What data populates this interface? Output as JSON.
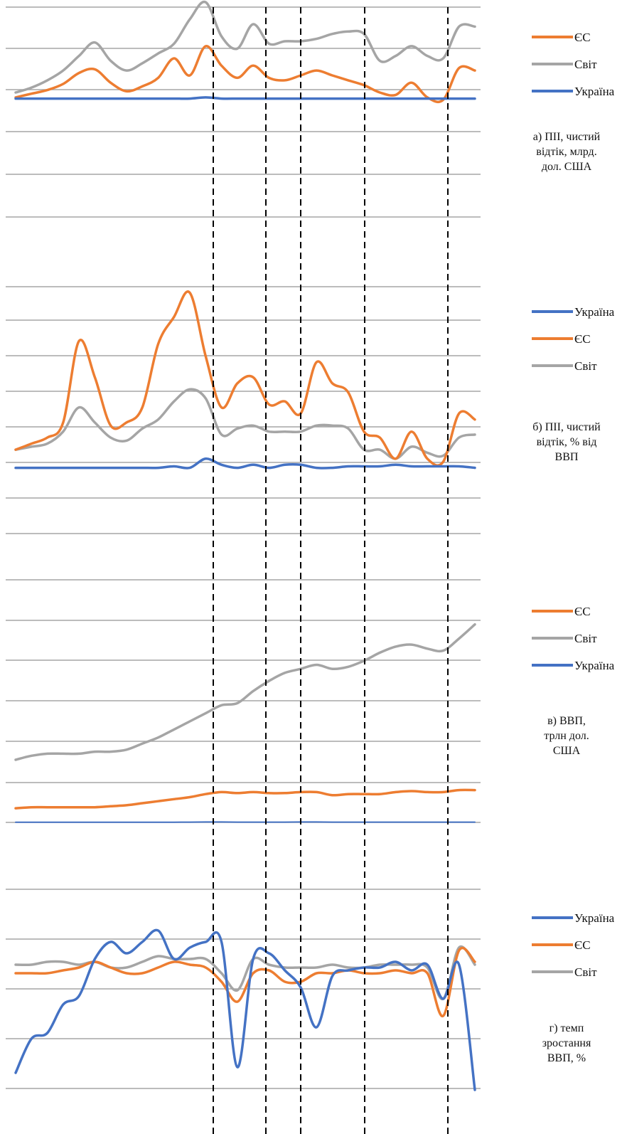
{
  "colors": {
    "ЄС": "#ED7D31",
    "Світ": "#A5A5A5",
    "Україна": "#4472C4"
  },
  "chart_data": [
    {
      "type": "line",
      "caption": "а) ПІІ, чистий відтік, млрд. дол. США",
      "caption_lines": [
        "а) ПІІ, чистий",
        "відтік, млрд.",
        "дол. США"
      ],
      "legend": [
        "ЄС",
        "Світ",
        "Україна"
      ],
      "grid": true,
      "ylim": [
        0,
        7
      ],
      "x": [
        0,
        1,
        2,
        3,
        4,
        5,
        6,
        7,
        8,
        9,
        10,
        11,
        12,
        13,
        14,
        15,
        16,
        17,
        18,
        19,
        20,
        21,
        22,
        23,
        24,
        25,
        26,
        27,
        28,
        29
      ],
      "series": [
        {
          "name": "ЄС",
          "values": [
            3.3,
            3.45,
            3.6,
            3.85,
            4.3,
            4.45,
            3.9,
            3.55,
            3.75,
            4.1,
            4.9,
            4.2,
            5.4,
            4.6,
            4.1,
            4.6,
            4.1,
            4.0,
            4.2,
            4.4,
            4.2,
            4.0,
            3.8,
            3.5,
            3.4,
            3.9,
            3.3,
            3.2,
            4.5,
            4.4
          ]
        },
        {
          "name": "Світ",
          "values": [
            3.5,
            3.7,
            4.0,
            4.4,
            5.0,
            5.55,
            4.8,
            4.4,
            4.7,
            5.1,
            5.5,
            6.5,
            7.2,
            5.8,
            5.3,
            6.3,
            5.5,
            5.6,
            5.6,
            5.7,
            5.9,
            6.0,
            5.9,
            4.8,
            5.0,
            5.4,
            5.0,
            4.9,
            6.2,
            6.2
          ]
        },
        {
          "name": "Україна",
          "values": [
            3.25,
            3.25,
            3.25,
            3.25,
            3.25,
            3.25,
            3.25,
            3.25,
            3.25,
            3.25,
            3.25,
            3.25,
            3.3,
            3.25,
            3.25,
            3.25,
            3.25,
            3.25,
            3.25,
            3.25,
            3.25,
            3.25,
            3.25,
            3.25,
            3.25,
            3.25,
            3.25,
            3.25,
            3.25,
            3.25
          ]
        }
      ]
    },
    {
      "type": "line",
      "caption": "б) ПІІ, чистий відтік, % від ВВП",
      "caption_lines": [
        "б) ПІІ, чистий",
        "відтік, % від",
        "ВВП"
      ],
      "legend": [
        "Україна",
        "ЄС",
        "Світ"
      ],
      "grid": true,
      "ylim": [
        -1,
        6
      ],
      "x": [
        0,
        1,
        2,
        3,
        4,
        5,
        6,
        7,
        8,
        9,
        10,
        11,
        12,
        13,
        14,
        15,
        16,
        17,
        18,
        19,
        20,
        21,
        22,
        23,
        24,
        25,
        26,
        27,
        28,
        29
      ],
      "series": [
        {
          "name": "Україна",
          "values": [
            0,
            0,
            0,
            0,
            0,
            0,
            0,
            0,
            0,
            0,
            0.05,
            0,
            0.3,
            0.1,
            0,
            0.1,
            0,
            0.1,
            0.1,
            0,
            0,
            0.05,
            0.05,
            0.05,
            0.1,
            0.05,
            0.05,
            0.05,
            0.05,
            0
          ]
        },
        {
          "name": "ЄС",
          "values": [
            0.6,
            0.8,
            1.0,
            1.5,
            4.2,
            3.0,
            1.4,
            1.5,
            2.0,
            4.1,
            5.0,
            5.8,
            3.7,
            2.0,
            2.8,
            3.0,
            2.1,
            2.2,
            1.8,
            3.5,
            2.8,
            2.5,
            1.2,
            1.0,
            0.3,
            1.2,
            0.3,
            0.2,
            1.8,
            1.6
          ]
        },
        {
          "name": "Світ",
          "values": [
            0.6,
            0.7,
            0.8,
            1.2,
            2.0,
            1.5,
            1.0,
            0.9,
            1.3,
            1.6,
            2.2,
            2.6,
            2.3,
            1.1,
            1.3,
            1.4,
            1.2,
            1.2,
            1.2,
            1.4,
            1.4,
            1.3,
            0.6,
            0.6,
            0.3,
            0.7,
            0.5,
            0.4,
            1.0,
            1.1
          ]
        }
      ]
    },
    {
      "type": "line",
      "caption": "в) ВВП, трлн дол. США",
      "caption_lines": [
        "в) ВВП,",
        "трлн дол.",
        "США"
      ],
      "legend": [
        "ЄС",
        "Світ",
        "Україна"
      ],
      "grid": true,
      "ylim": [
        0,
        100
      ],
      "x": [
        0,
        1,
        2,
        3,
        4,
        5,
        6,
        7,
        8,
        9,
        10,
        11,
        12,
        13,
        14,
        15,
        16,
        17,
        18,
        19,
        20,
        21,
        22,
        23,
        24,
        25,
        26,
        27,
        28,
        29
      ],
      "series": [
        {
          "name": "ЄС",
          "values": [
            7,
            7.5,
            7.5,
            7.5,
            7.5,
            7.5,
            8,
            8.5,
            9.5,
            10.5,
            11.5,
            12.5,
            14,
            15,
            14.5,
            15,
            14.5,
            14.5,
            15,
            15,
            13.5,
            14,
            14,
            14,
            15,
            15.5,
            15,
            15,
            16,
            16
          ]
        },
        {
          "name": "Світ",
          "values": [
            31,
            33,
            34,
            34,
            34,
            35,
            35,
            36,
            39,
            42,
            46,
            50,
            54,
            58,
            59,
            65,
            70,
            74,
            76,
            78,
            76,
            77,
            80,
            84,
            87,
            88,
            86,
            85,
            91,
            98
          ]
        },
        {
          "name": "Україна",
          "values": [
            0.1,
            0.1,
            0.1,
            0.1,
            0.1,
            0.1,
            0.1,
            0.1,
            0.1,
            0.1,
            0.1,
            0.15,
            0.2,
            0.2,
            0.15,
            0.15,
            0.15,
            0.15,
            0.2,
            0.2,
            0.15,
            0.15,
            0.15,
            0.15,
            0.15,
            0.15,
            0.15,
            0.15,
            0.15,
            0.15
          ]
        }
      ]
    },
    {
      "type": "line",
      "caption": "г) темп зростання ВВП, %",
      "caption_lines": [
        "г) темп",
        "зростання",
        "ВВП, %"
      ],
      "legend": [
        "Україна",
        "ЄС",
        "Світ"
      ],
      "grid": true,
      "ylim": [
        -20,
        15
      ],
      "x": [
        0,
        1,
        2,
        3,
        4,
        5,
        6,
        7,
        8,
        9,
        10,
        11,
        12,
        13,
        14,
        15,
        16,
        17,
        18,
        19,
        20,
        21,
        22,
        23,
        24,
        25,
        26,
        27,
        28,
        29
      ],
      "series": [
        {
          "name": "Україна",
          "values": [
            -16,
            -10,
            -9,
            -4,
            -2.5,
            4,
            7,
            5,
            7,
            9,
            4,
            6,
            7,
            7,
            -15,
            4,
            5,
            2,
            -1,
            -8,
            1,
            2,
            2.5,
            2.5,
            3.5,
            2,
            3,
            -3,
            3,
            -19
          ]
        },
        {
          "name": "ЄС",
          "values": [
            1.5,
            1.5,
            1.5,
            2,
            2.5,
            3.5,
            2.5,
            1.5,
            1.5,
            2.5,
            3.5,
            3,
            2.5,
            0,
            -3.5,
            1.5,
            2,
            0,
            0,
            1.5,
            1.5,
            2,
            1.5,
            1.5,
            2,
            1.5,
            1.5,
            -6,
            5.5,
            3.5
          ]
        },
        {
          "name": "Світ",
          "values": [
            3,
            3,
            3.5,
            3.5,
            3,
            3.5,
            2.5,
            2.5,
            3.5,
            4.5,
            4,
            4,
            4,
            1.5,
            -1.5,
            4,
            3,
            2.5,
            2.5,
            2.5,
            3,
            2.5,
            2.5,
            3,
            3,
            3,
            2.5,
            -3,
            6,
            3
          ]
        }
      ]
    }
  ]
}
